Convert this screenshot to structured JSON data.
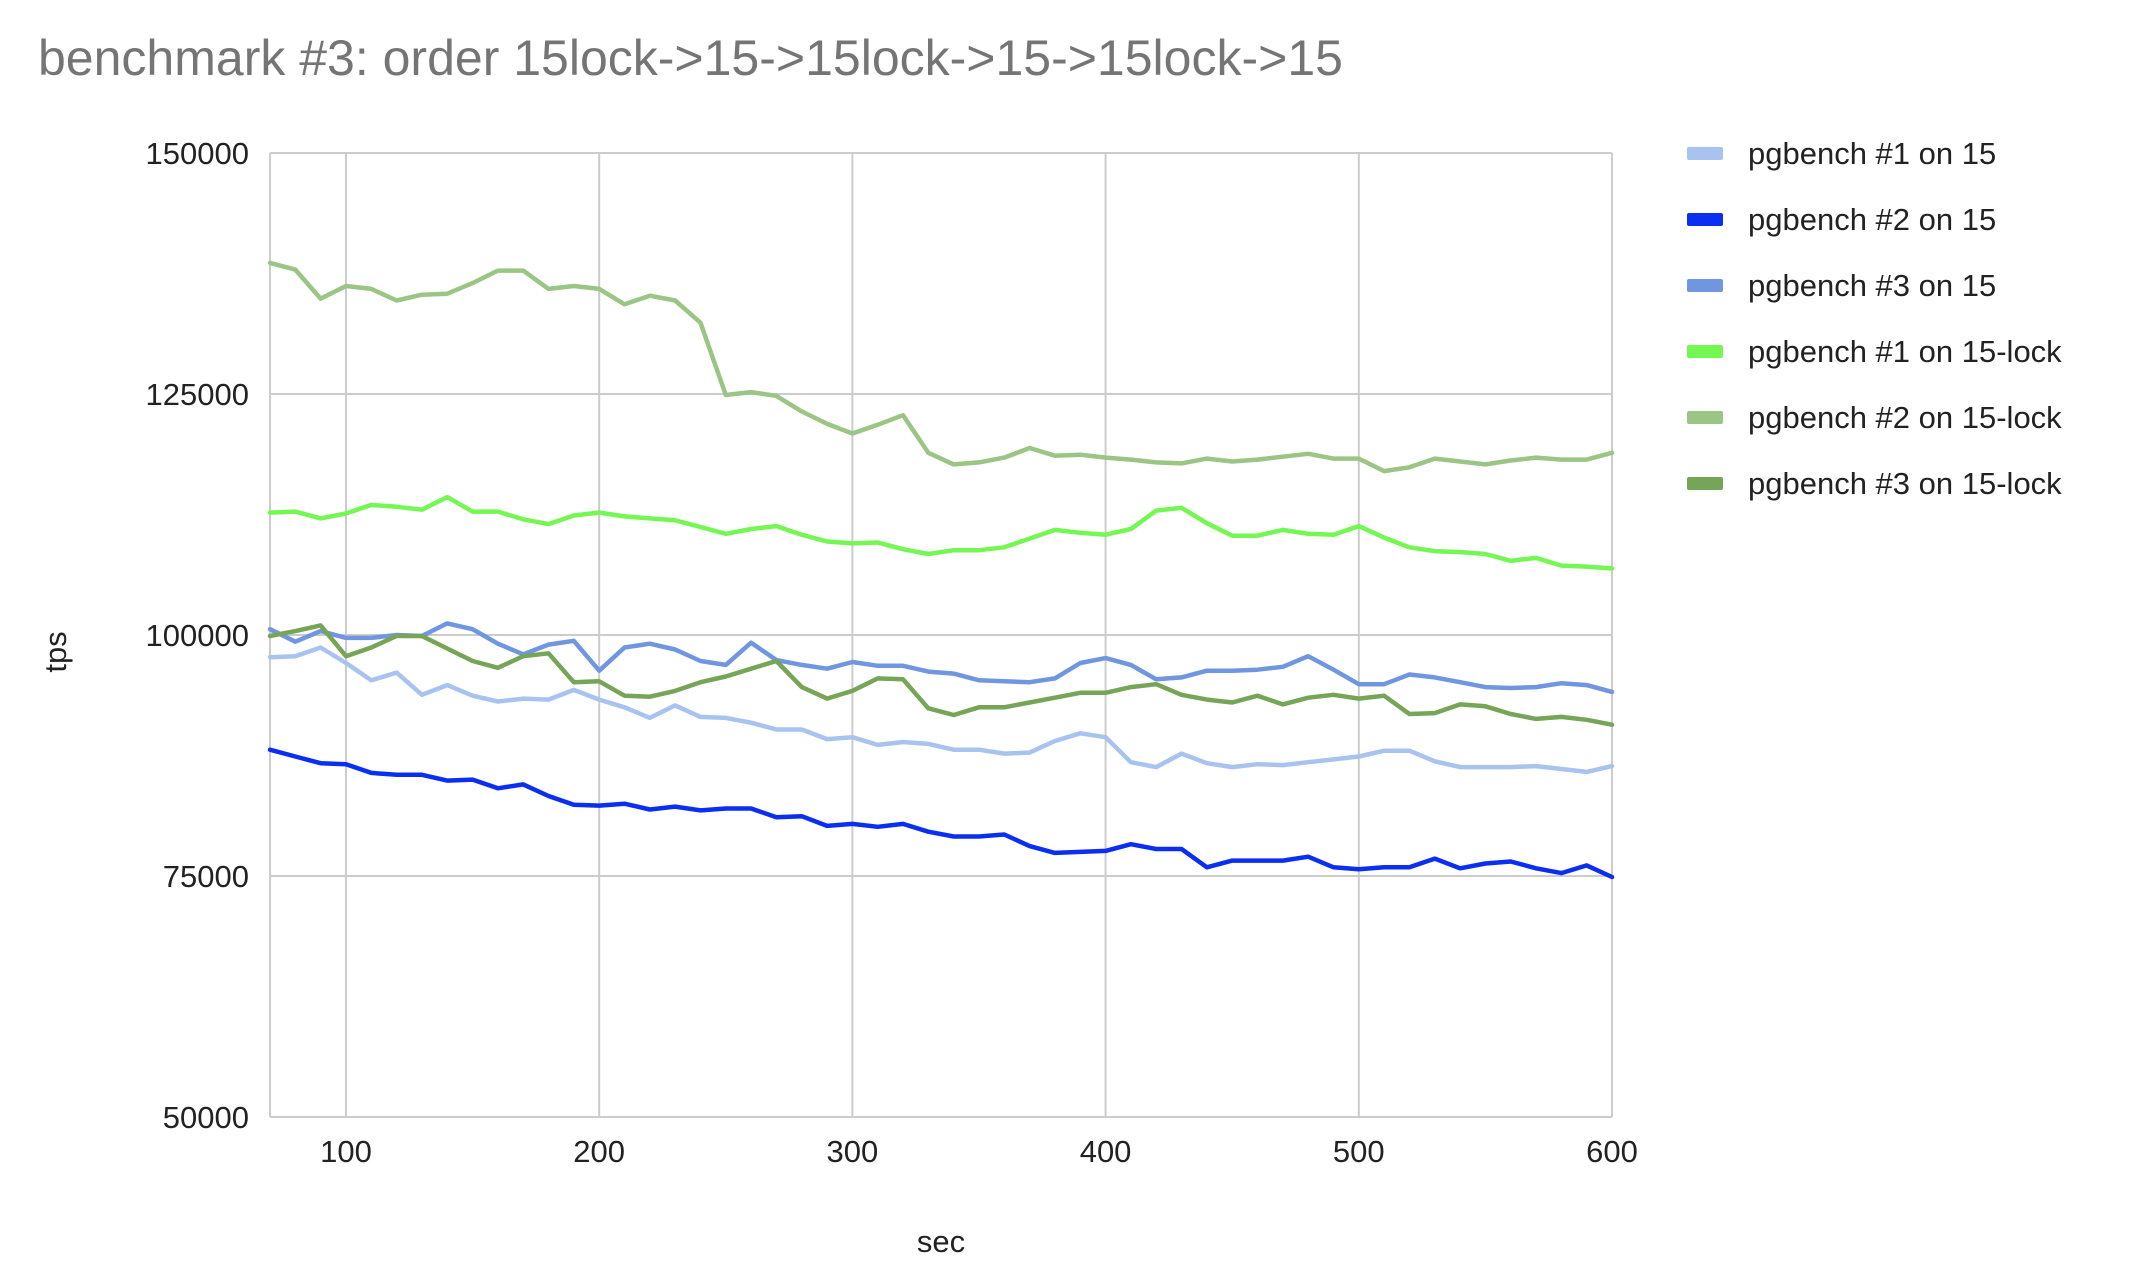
{
  "chart_data": {
    "type": "line",
    "title": "benchmark #3: order 15lock->15->15lock->15->15lock->15",
    "xlabel": "sec",
    "ylabel": "tps",
    "xlim": [
      70,
      600
    ],
    "ylim": [
      50000,
      150000
    ],
    "xticks": [
      100,
      200,
      300,
      400,
      500,
      600
    ],
    "yticks": [
      50000,
      75000,
      100000,
      125000,
      150000
    ],
    "grid": true,
    "legend": "right",
    "x": [
      70,
      80,
      90,
      100,
      110,
      120,
      130,
      140,
      150,
      160,
      170,
      180,
      190,
      200,
      210,
      220,
      230,
      240,
      250,
      260,
      270,
      280,
      290,
      300,
      310,
      320,
      330,
      340,
      350,
      360,
      370,
      380,
      390,
      400,
      410,
      420,
      430,
      440,
      450,
      460,
      470,
      480,
      490,
      500,
      510,
      520,
      530,
      540,
      550,
      560,
      570,
      580,
      590,
      600
    ],
    "series": [
      {
        "name": "pgbench #1 on 15",
        "color": "#a8c3ef",
        "values": [
          97700,
          97800,
          98700,
          97100,
          95300,
          96100,
          93800,
          94800,
          93700,
          93100,
          93400,
          93300,
          94300,
          93300,
          92500,
          91400,
          92700,
          91500,
          91400,
          90900,
          90200,
          90200,
          89200,
          89400,
          88600,
          88900,
          88700,
          88100,
          88100,
          87700,
          87800,
          89000,
          89800,
          89400,
          86800,
          86300,
          87700,
          86700,
          86300,
          86600,
          86500,
          86800,
          87100,
          87400,
          88000,
          88000,
          86900,
          86300,
          86300,
          86300,
          86400,
          86100,
          85800,
          86400
        ]
      },
      {
        "name": "pgbench #2 on 15",
        "color": "#0b2ff0",
        "values": [
          88100,
          87400,
          86700,
          86600,
          85700,
          85500,
          85500,
          84900,
          85000,
          84100,
          84500,
          83300,
          82400,
          82300,
          82500,
          81900,
          82200,
          81800,
          82000,
          82000,
          81100,
          81200,
          80200,
          80400,
          80100,
          80400,
          79600,
          79100,
          79100,
          79300,
          78100,
          77400,
          77500,
          77600,
          78300,
          77800,
          77800,
          75900,
          76600,
          76600,
          76600,
          77000,
          75900,
          75700,
          75900,
          75900,
          76800,
          75800,
          76300,
          76500,
          75800,
          75300,
          76100,
          74900
        ]
      },
      {
        "name": "pgbench #3 on 15",
        "color": "#7096e0",
        "values": [
          100600,
          99300,
          100400,
          99700,
          99700,
          100000,
          99900,
          101200,
          100600,
          99100,
          98000,
          99000,
          99400,
          96300,
          98700,
          99100,
          98500,
          97300,
          96900,
          99200,
          97400,
          96900,
          96500,
          97200,
          96800,
          96800,
          96200,
          96000,
          95300,
          95200,
          95100,
          95500,
          97100,
          97600,
          96900,
          95400,
          95600,
          96300,
          96300,
          96400,
          96700,
          97800,
          96400,
          94900,
          94900,
          95900,
          95600,
          95100,
          94600,
          94500,
          94600,
          95000,
          94800,
          94100
        ]
      },
      {
        "name": "pgbench #1 on 15-lock",
        "color": "#74f752",
        "values": [
          112700,
          112800,
          112100,
          112600,
          113500,
          113300,
          113000,
          114300,
          112800,
          112800,
          112000,
          111500,
          112400,
          112700,
          112300,
          112100,
          111900,
          111200,
          110500,
          111000,
          111300,
          110400,
          109700,
          109500,
          109600,
          108900,
          108400,
          108800,
          108800,
          109100,
          110000,
          110900,
          110600,
          110400,
          111000,
          112900,
          113200,
          111600,
          110300,
          110300,
          110900,
          110500,
          110400,
          111300,
          110100,
          109100,
          108700,
          108600,
          108400,
          107700,
          108000,
          107200,
          107100,
          106900
        ]
      },
      {
        "name": "pgbench #2 on 15-lock",
        "color": "#9bc585",
        "values": [
          138600,
          137900,
          134900,
          136200,
          135900,
          134700,
          135300,
          135400,
          136500,
          137800,
          137800,
          135900,
          136200,
          135900,
          134300,
          135200,
          134700,
          132400,
          124900,
          125200,
          124800,
          123200,
          121900,
          120900,
          121800,
          122800,
          118900,
          117700,
          117900,
          118400,
          119400,
          118600,
          118700,
          118400,
          118200,
          117900,
          117800,
          118300,
          118000,
          118200,
          118500,
          118800,
          118300,
          118300,
          117000,
          117400,
          118300,
          118000,
          117700,
          118100,
          118400,
          118200,
          118200,
          118900
        ]
      },
      {
        "name": "pgbench #3 on 15-lock",
        "color": "#76a557",
        "values": [
          99900,
          100400,
          101000,
          97800,
          98700,
          99900,
          99900,
          98600,
          97300,
          96600,
          97800,
          98100,
          95100,
          95200,
          93700,
          93600,
          94200,
          95100,
          95700,
          96500,
          97300,
          94600,
          93400,
          94200,
          95500,
          95400,
          92400,
          91700,
          92500,
          92500,
          93000,
          93500,
          94000,
          94000,
          94600,
          94900,
          93800,
          93300,
          93000,
          93700,
          92800,
          93500,
          93800,
          93400,
          93700,
          91800,
          91900,
          92800,
          92600,
          91800,
          91300,
          91500,
          91200,
          90700
        ]
      }
    ]
  }
}
